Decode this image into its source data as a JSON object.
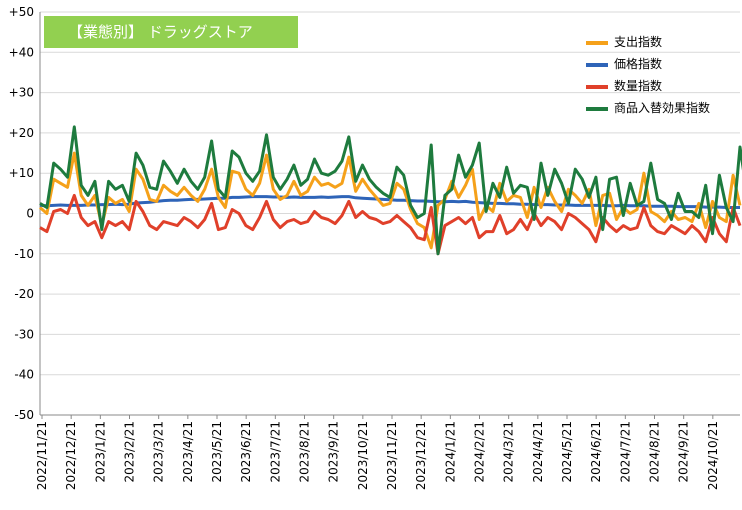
{
  "badge": "【業態別】 ドラッグストア",
  "chart_data": {
    "type": "line",
    "title": "【業態別】 ドラッグストア",
    "ylim": [
      -50,
      50
    ],
    "y_ticks": [
      "+50",
      "+40",
      "+30",
      "+20",
      "+10",
      "0",
      "-10",
      "-20",
      "-30",
      "-40",
      "-50"
    ],
    "grid": true,
    "legend_position": "top-right",
    "x_tick_labels": [
      "2022/11/21",
      "2022/12/21",
      "2023/1/21",
      "2023/2/21",
      "2023/3/21",
      "2023/4/21",
      "2023/5/21",
      "2023/6/21",
      "2023/7/21",
      "2023/8/21",
      "2023/9/21",
      "2023/10/21",
      "2023/11/21",
      "2023/12/21",
      "2024/1/21",
      "2024/2/21",
      "2024/3/21",
      "2024/4/21",
      "2024/5/21",
      "2024/6/21",
      "2024/7/21",
      "2024/8/21",
      "2024/9/21",
      "2024/10/21"
    ],
    "x_start": "2022/11/21",
    "series": [
      {
        "name": "支出指数",
        "color": "#f5a11a",
        "values": [
          1.5,
          0.0,
          8.5,
          7.5,
          6.5,
          15.0,
          4.5,
          2.0,
          4.5,
          -3.0,
          4.0,
          2.5,
          3.5,
          0.5,
          11.0,
          8.5,
          3.5,
          3.0,
          7.0,
          5.5,
          4.5,
          6.5,
          4.5,
          3.0,
          6.0,
          11.0,
          4.0,
          1.5,
          10.5,
          10.0,
          6.0,
          4.5,
          7.5,
          14.5,
          6.0,
          3.5,
          4.5,
          8.0,
          4.5,
          5.5,
          9.0,
          7.0,
          7.5,
          6.5,
          7.5,
          14.0,
          5.5,
          8.5,
          6.0,
          4.0,
          2.0,
          2.5,
          7.5,
          6.0,
          1.0,
          -2.5,
          -3.5,
          -8.5,
          2.0,
          3.5,
          8.0,
          4.0,
          7.0,
          11.0,
          -1.5,
          2.0,
          0.5,
          7.5,
          3.0,
          4.5,
          4.0,
          -1.0,
          6.5,
          1.5,
          6.5,
          3.0,
          0.5,
          6.0,
          4.5,
          2.5,
          6.0,
          -3.0,
          4.5,
          5.0,
          -1.5,
          1.5,
          0.0,
          1.0,
          10.0,
          0.5,
          -0.5,
          -2.0,
          0.5,
          -1.5,
          -1.0,
          -2.0,
          2.5,
          -3.5,
          3.0,
          -1.0,
          -2.0,
          9.5,
          2.0
        ]
      },
      {
        "name": "価格指数",
        "color": "#2e64b8",
        "values": [
          2.0,
          1.9,
          2.0,
          2.1,
          2.0,
          2.0,
          2.0,
          2.1,
          2.1,
          2.2,
          2.2,
          2.3,
          2.2,
          2.3,
          2.6,
          2.7,
          2.8,
          3.0,
          3.2,
          3.3,
          3.3,
          3.4,
          3.5,
          3.5,
          3.6,
          3.7,
          3.8,
          3.8,
          4.0,
          4.0,
          4.1,
          4.2,
          4.2,
          4.2,
          4.1,
          4.1,
          4.0,
          4.1,
          4.0,
          4.0,
          4.0,
          4.1,
          4.0,
          4.1,
          4.2,
          4.2,
          3.9,
          3.8,
          3.7,
          3.6,
          3.5,
          3.4,
          3.3,
          3.3,
          3.2,
          3.1,
          3.1,
          3.0,
          2.9,
          2.9,
          3.0,
          2.9,
          3.0,
          2.8,
          2.7,
          2.6,
          2.5,
          2.5,
          2.4,
          2.4,
          2.3,
          2.3,
          2.2,
          2.2,
          2.2,
          2.1,
          2.1,
          2.1,
          2.0,
          2.0,
          2.0,
          2.0,
          2.0,
          1.9,
          1.9,
          2.0,
          1.9,
          1.9,
          1.9,
          1.8,
          1.8,
          1.8,
          1.8,
          1.7,
          1.7,
          1.7,
          1.7,
          1.6,
          1.6,
          1.6,
          1.5,
          1.5,
          1.5
        ]
      },
      {
        "name": "数量指数",
        "color": "#e0402a",
        "values": [
          -3.5,
          -4.5,
          0.5,
          1.0,
          0.0,
          4.5,
          -1.0,
          -3.0,
          -2.0,
          -6.0,
          -2.0,
          -3.0,
          -2.0,
          -4.0,
          3.0,
          0.5,
          -3.0,
          -4.0,
          -2.0,
          -2.5,
          -3.0,
          -1.0,
          -2.0,
          -3.5,
          -1.5,
          2.5,
          -4.0,
          -3.5,
          1.0,
          0.0,
          -3.0,
          -4.0,
          -1.0,
          3.0,
          -1.5,
          -3.5,
          -2.0,
          -1.5,
          -2.5,
          -2.0,
          0.5,
          -1.0,
          -1.5,
          -2.5,
          -0.5,
          3.0,
          -1.0,
          0.5,
          -1.0,
          -1.5,
          -2.5,
          -2.0,
          -0.5,
          -2.0,
          -3.5,
          -6.0,
          -6.5,
          1.5,
          -10.0,
          -3.0,
          -2.0,
          -1.0,
          -2.5,
          -1.0,
          -6.0,
          -4.5,
          -4.5,
          -0.5,
          -5.0,
          -4.0,
          -1.5,
          -4.0,
          0.0,
          -3.0,
          -1.0,
          -2.0,
          -4.0,
          0.0,
          -1.0,
          -2.5,
          -4.0,
          -7.0,
          -1.0,
          -3.0,
          -4.5,
          -3.0,
          -4.0,
          -3.5,
          1.5,
          -3.0,
          -4.5,
          -5.0,
          -3.0,
          -4.0,
          -5.0,
          -3.0,
          -4.5,
          -7.0,
          -1.0,
          -5.0,
          -7.0,
          1.5,
          -3.0
        ]
      },
      {
        "name": "商品入替効果指数",
        "color": "#1e7b3e",
        "values": [
          2.5,
          1.5,
          12.5,
          11.0,
          9.0,
          21.5,
          7.0,
          4.5,
          8.0,
          -4.0,
          8.0,
          6.0,
          7.0,
          3.0,
          15.0,
          12.0,
          6.5,
          6.0,
          13.0,
          10.5,
          7.5,
          11.0,
          8.0,
          6.0,
          9.0,
          18.0,
          6.0,
          4.0,
          15.5,
          14.0,
          10.0,
          8.0,
          10.5,
          19.5,
          9.0,
          6.0,
          8.5,
          12.0,
          7.0,
          8.5,
          13.5,
          10.0,
          9.5,
          10.5,
          13.0,
          19.0,
          8.0,
          12.0,
          8.5,
          6.5,
          5.0,
          4.0,
          11.5,
          9.5,
          2.0,
          -1.0,
          0.0,
          17.0,
          -10.0,
          4.5,
          6.0,
          14.5,
          9.0,
          12.0,
          17.5,
          0.5,
          7.5,
          4.0,
          11.5,
          5.0,
          7.0,
          6.5,
          -1.5,
          12.5,
          4.5,
          11.0,
          7.5,
          2.5,
          11.0,
          8.5,
          4.0,
          9.0,
          -4.0,
          8.5,
          9.0,
          -0.5,
          7.5,
          2.0,
          3.0,
          12.5,
          3.5,
          2.5,
          -1.5,
          5.0,
          0.5,
          0.5,
          -1.0,
          7.0,
          -5.0,
          9.5,
          1.5,
          -2.0,
          16.5,
          5.0
        ]
      }
    ]
  }
}
